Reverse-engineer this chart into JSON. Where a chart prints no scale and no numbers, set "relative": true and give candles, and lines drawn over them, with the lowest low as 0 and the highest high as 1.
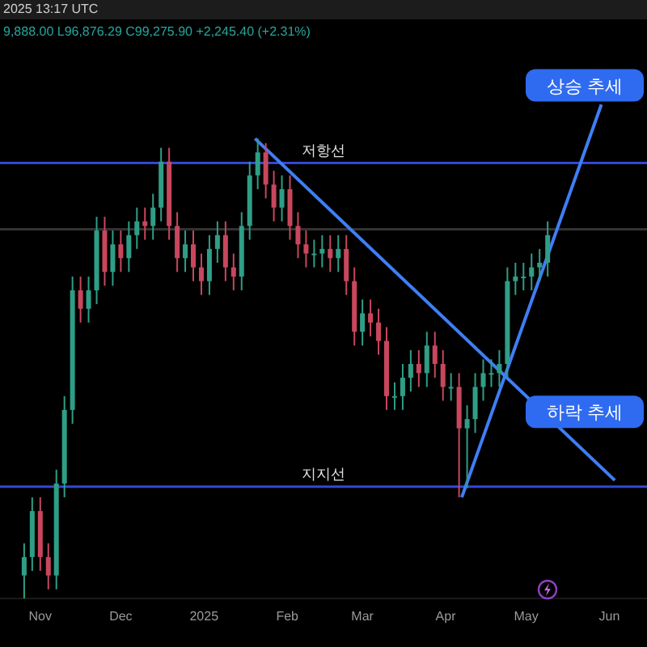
{
  "chart_data": {
    "type": "candlestick",
    "relative": true,
    "colors": [
      "#2f9e86",
      "#2f9e86",
      "#c8475d",
      "#c8475d",
      "#2f9e86",
      "#2f9e86",
      "#2f9e86",
      "#c8475d",
      "#2f9e86",
      "#2f9e86",
      "#c8475d",
      "#2f9e86",
      "#c8475d",
      "#2f9e86",
      "#2f9e86",
      "#c8475d",
      "#2f9e86",
      "#2f9e86",
      "#c8475d",
      "#c8475d",
      "#2f9e86",
      "#c8475d",
      "#c8475d",
      "#2f9e86",
      "#2f9e86",
      "#c8475d",
      "#c8475d",
      "#2f9e86",
      "#2f9e86",
      "#2f9e86",
      "#c8475d",
      "#c8475d",
      "#2f9e86",
      "#c8475d",
      "#c8475d",
      "#c8475d",
      "#2f9e86",
      "#2f9e86",
      "#c8475d",
      "#2f9e86",
      "#c8475d",
      "#c8475d",
      "#2f9e86",
      "#c8475d",
      "#c8475d",
      "#c8475d",
      "#2f9e86",
      "#2f9e86",
      "#2f9e86",
      "#c8475d",
      "#2f9e86",
      "#c8475d",
      "#c8475d",
      "#2f9e86",
      "#c8475d",
      "#2f9e86",
      "#2f9e86",
      "#2f9e86",
      "#2f9e86",
      "#2f9e86",
      "#2f9e86",
      "#2f9e86",
      "#2f9e86",
      "#2f9e86",
      "#2f9e86",
      "#2f9e86"
    ],
    "annotations": [
      "2025 13:17 UTC",
      "9,888.00 L96,876.29 C99,275.90 +2,245.40 (+2.31%)",
      {
        "text": "상승 추세",
        "x": "2025-05-29",
        "y": 1.07
      },
      {
        "text": "하락 추세",
        "x": "2025-05-19",
        "y": 0.36
      }
    ],
    "x": [
      "2024-10-26",
      "2024-10-29",
      "2024-11-01",
      "2024-11-04",
      "2024-11-07",
      "2024-11-10",
      "2024-11-13",
      "2024-11-16",
      "2024-11-19",
      "2024-11-22",
      "2024-11-25",
      "2024-11-28",
      "2024-12-01",
      "2024-12-04",
      "2024-12-07",
      "2024-12-10",
      "2024-12-13",
      "2024-12-16",
      "2024-12-19",
      "2024-12-22",
      "2024-12-25",
      "2024-12-28",
      "2024-12-31",
      "2025-01-03",
      "2025-01-06",
      "2025-01-09",
      "2025-01-12",
      "2025-01-15",
      "2025-01-18",
      "2025-01-21",
      "2025-01-24",
      "2025-01-27",
      "2025-01-30",
      "2025-02-02",
      "2025-02-05",
      "2025-02-08",
      "2025-02-11",
      "2025-02-14",
      "2025-02-17",
      "2025-02-20",
      "2025-02-23",
      "2025-02-26",
      "2025-03-01",
      "2025-03-04",
      "2025-03-07",
      "2025-03-10",
      "2025-03-13",
      "2025-03-16",
      "2025-03-19",
      "2025-03-22",
      "2025-03-25",
      "2025-03-28",
      "2025-03-31",
      "2025-04-03",
      "2025-04-06",
      "2025-04-09",
      "2025-04-12",
      "2025-04-15",
      "2025-04-18",
      "2025-04-21",
      "2025-04-24",
      "2025-04-27",
      "2025-04-30",
      "2025-05-03",
      "2025-05-06",
      "2025-05-09"
    ],
    "ohlc": [
      [
        0.05,
        0.12,
        0,
        0.09
      ],
      [
        0.09,
        0.22,
        0.06,
        0.19
      ],
      [
        0.19,
        0.22,
        0.06,
        0.09
      ],
      [
        0.09,
        0.12,
        0.02,
        0.05
      ],
      [
        0.05,
        0.28,
        0.02,
        0.25
      ],
      [
        0.25,
        0.44,
        0.22,
        0.41
      ],
      [
        0.41,
        0.7,
        0.38,
        0.67
      ],
      [
        0.67,
        0.7,
        0.6,
        0.63
      ],
      [
        0.63,
        0.7,
        0.6,
        0.67
      ],
      [
        0.67,
        0.83,
        0.64,
        0.8
      ],
      [
        0.8,
        0.83,
        0.68,
        0.71
      ],
      [
        0.71,
        0.8,
        0.68,
        0.77
      ],
      [
        0.77,
        0.8,
        0.71,
        0.74
      ],
      [
        0.74,
        0.82,
        0.71,
        0.79
      ],
      [
        0.79,
        0.85,
        0.76,
        0.82
      ],
      [
        0.82,
        0.85,
        0.78,
        0.81
      ],
      [
        0.81,
        0.88,
        0.78,
        0.85
      ],
      [
        0.85,
        0.98,
        0.82,
        0.95
      ],
      [
        0.95,
        0.98,
        0.78,
        0.81
      ],
      [
        0.81,
        0.84,
        0.71,
        0.74
      ],
      [
        0.74,
        0.8,
        0.71,
        0.77
      ],
      [
        0.77,
        0.8,
        0.69,
        0.72
      ],
      [
        0.72,
        0.75,
        0.66,
        0.69
      ],
      [
        0.69,
        0.79,
        0.66,
        0.76
      ],
      [
        0.76,
        0.82,
        0.73,
        0.79
      ],
      [
        0.79,
        0.82,
        0.69,
        0.72
      ],
      [
        0.72,
        0.75,
        0.67,
        0.7
      ],
      [
        0.7,
        0.84,
        0.67,
        0.81
      ],
      [
        0.81,
        0.95,
        0.78,
        0.92
      ],
      [
        0.92,
        1,
        0.89,
        0.97
      ],
      [
        0.97,
        0.99,
        0.87,
        0.9
      ],
      [
        0.9,
        0.93,
        0.82,
        0.85
      ],
      [
        0.85,
        0.92,
        0.82,
        0.89
      ],
      [
        0.89,
        0.92,
        0.78,
        0.81
      ],
      [
        0.81,
        0.84,
        0.74,
        0.77
      ],
      [
        0.77,
        0.8,
        0.72,
        0.75
      ],
      [
        0.75,
        0.78,
        0.72,
        0.75
      ],
      [
        0.75,
        0.79,
        0.72,
        0.76
      ],
      [
        0.76,
        0.79,
        0.71,
        0.74
      ],
      [
        0.74,
        0.79,
        0.71,
        0.76
      ],
      [
        0.76,
        0.79,
        0.66,
        0.69
      ],
      [
        0.69,
        0.72,
        0.55,
        0.58
      ],
      [
        0.58,
        0.65,
        0.55,
        0.62
      ],
      [
        0.62,
        0.65,
        0.57,
        0.6
      ],
      [
        0.6,
        0.63,
        0.53,
        0.56
      ],
      [
        0.56,
        0.59,
        0.41,
        0.44
      ],
      [
        0.44,
        0.47,
        0.41,
        0.44
      ],
      [
        0.44,
        0.51,
        0.41,
        0.48
      ],
      [
        0.48,
        0.54,
        0.45,
        0.51
      ],
      [
        0.51,
        0.54,
        0.46,
        0.49
      ],
      [
        0.49,
        0.58,
        0.46,
        0.55
      ],
      [
        0.55,
        0.58,
        0.48,
        0.51
      ],
      [
        0.51,
        0.54,
        0.43,
        0.46
      ],
      [
        0.46,
        0.49,
        0.43,
        0.46
      ],
      [
        0.46,
        0.49,
        0.22,
        0.37
      ],
      [
        0.37,
        0.42,
        0.24,
        0.39
      ],
      [
        0.39,
        0.49,
        0.36,
        0.46
      ],
      [
        0.46,
        0.52,
        0.43,
        0.49
      ],
      [
        0.49,
        0.52,
        0.46,
        0.49
      ],
      [
        0.49,
        0.54,
        0.46,
        0.51
      ],
      [
        0.51,
        0.72,
        0.48,
        0.69
      ],
      [
        0.69,
        0.73,
        0.66,
        0.7
      ],
      [
        0.7,
        0.73,
        0.67,
        0.7
      ],
      [
        0.7,
        0.75,
        0.67,
        0.72
      ],
      [
        0.72,
        0.76,
        0.69,
        0.73
      ],
      [
        0.73,
        0.82,
        0.7,
        0.79
      ]
    ],
    "series": [
      {
        "type": "line",
        "color": "#3f7ef5",
        "x": [
          "2025-01-20",
          "2025-06-03"
        ],
        "values": [
          1,
          0.257
        ]
      },
      {
        "type": "line",
        "color": "#3f7ef5",
        "x": [
          "2025-04-07",
          "2025-05-29"
        ],
        "values": [
          0.22,
          1.074
        ]
      }
    ],
    "ref_lines": [
      {
        "axis": "y",
        "value": 0.947,
        "label": "저항선",
        "color": "#3447d6"
      },
      {
        "axis": "y",
        "value": 0.243,
        "label": "지지선",
        "color": "#3447d6"
      },
      {
        "axis": "y",
        "value": 0.803,
        "color": "#333333"
      }
    ],
    "xlim": [
      "2024-10-17",
      "2025-06-15"
    ],
    "xticks": [
      {
        "value": "2024-11-01",
        "label": "Nov"
      },
      {
        "value": "2024-12-01",
        "label": "Dec"
      },
      {
        "value": "2025-01-01",
        "label": "2025"
      },
      {
        "value": "2025-02-01",
        "label": "Feb"
      },
      {
        "value": "2025-03-01",
        "label": "Mar"
      },
      {
        "value": "2025-04-01",
        "label": "Apr"
      },
      {
        "value": "2025-05-01",
        "label": "May"
      },
      {
        "value": "2025-06-01",
        "label": "Jun"
      }
    ],
    "grid": false,
    "legend": false,
    "line_style": "solid",
    "marker": "none"
  }
}
